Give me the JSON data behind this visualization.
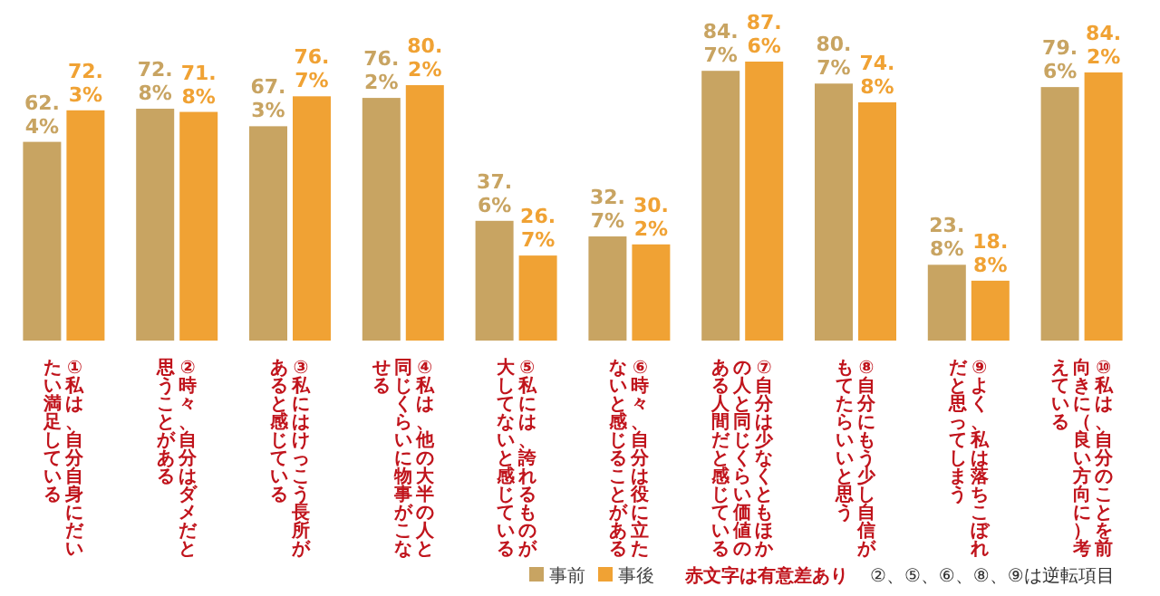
{
  "chart_data": {
    "type": "bar",
    "categories": [
      "①私は、自分自身にだいたい満足している",
      "②時々、自分はダメだと思うことがある",
      "③私にはけっこう長所があると感じている",
      "④私は、他の大半の人と同じくらいに物事がこなせる",
      "⑤私には、誇れるものが大してないと感じている",
      "⑥時々、自分は役に立たないと感じることがある",
      "⑦自分は少なくともほかの人と同じくらい価値のある人間だと感じている",
      "⑧自分にもう少し自信がもてたらいいと思う",
      "⑨よく、私は落ちこぼれだと思ってしまう",
      "⑩私は、自分のことを前向きに（良い方向に）考えている"
    ],
    "series": [
      {
        "name": "事前",
        "color": "#c8a462",
        "values": [
          62.4,
          72.8,
          67.3,
          76.2,
          37.6,
          32.7,
          84.7,
          80.7,
          23.8,
          79.6
        ],
        "value_labels": [
          "62.4%",
          "72.8%",
          "67.3%",
          "76.2%",
          "37.6%",
          "32.7%",
          "84.7%",
          "80.7%",
          "23.8%",
          "79.6%"
        ]
      },
      {
        "name": "事後",
        "color": "#f0a234",
        "values": [
          72.3,
          71.8,
          76.7,
          80.2,
          26.7,
          30.2,
          87.6,
          74.8,
          18.8,
          84.2
        ],
        "value_labels": [
          "72.3%",
          "71.8%",
          "76.7%",
          "80.2%",
          "26.7%",
          "30.2%",
          "87.6%",
          "74.8%",
          "18.8%",
          "84.2%"
        ]
      }
    ],
    "legend": "bottom",
    "annotations": [
      "赤文字は有意差あり",
      "②、⑤、⑥、⑧、⑨は逆転項目"
    ]
  }
}
